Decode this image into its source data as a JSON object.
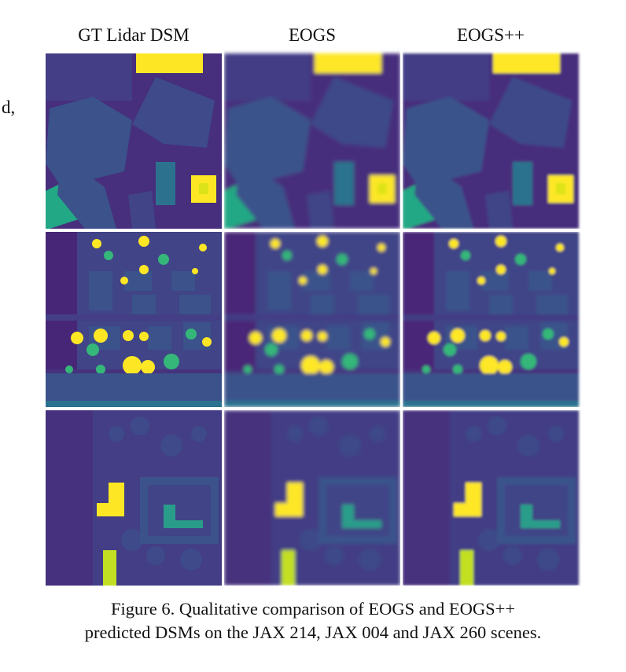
{
  "margin_text": "d,",
  "headers": [
    "GT Lidar DSM",
    "EOGS",
    "EOGS++"
  ],
  "caption": {
    "lines": [
      "Figure 6. Qualitative comparison of EOGS and EOGS++",
      "predicted DSMs on the JAX 214, JAX 004 and JAX 260 scenes."
    ]
  }
}
